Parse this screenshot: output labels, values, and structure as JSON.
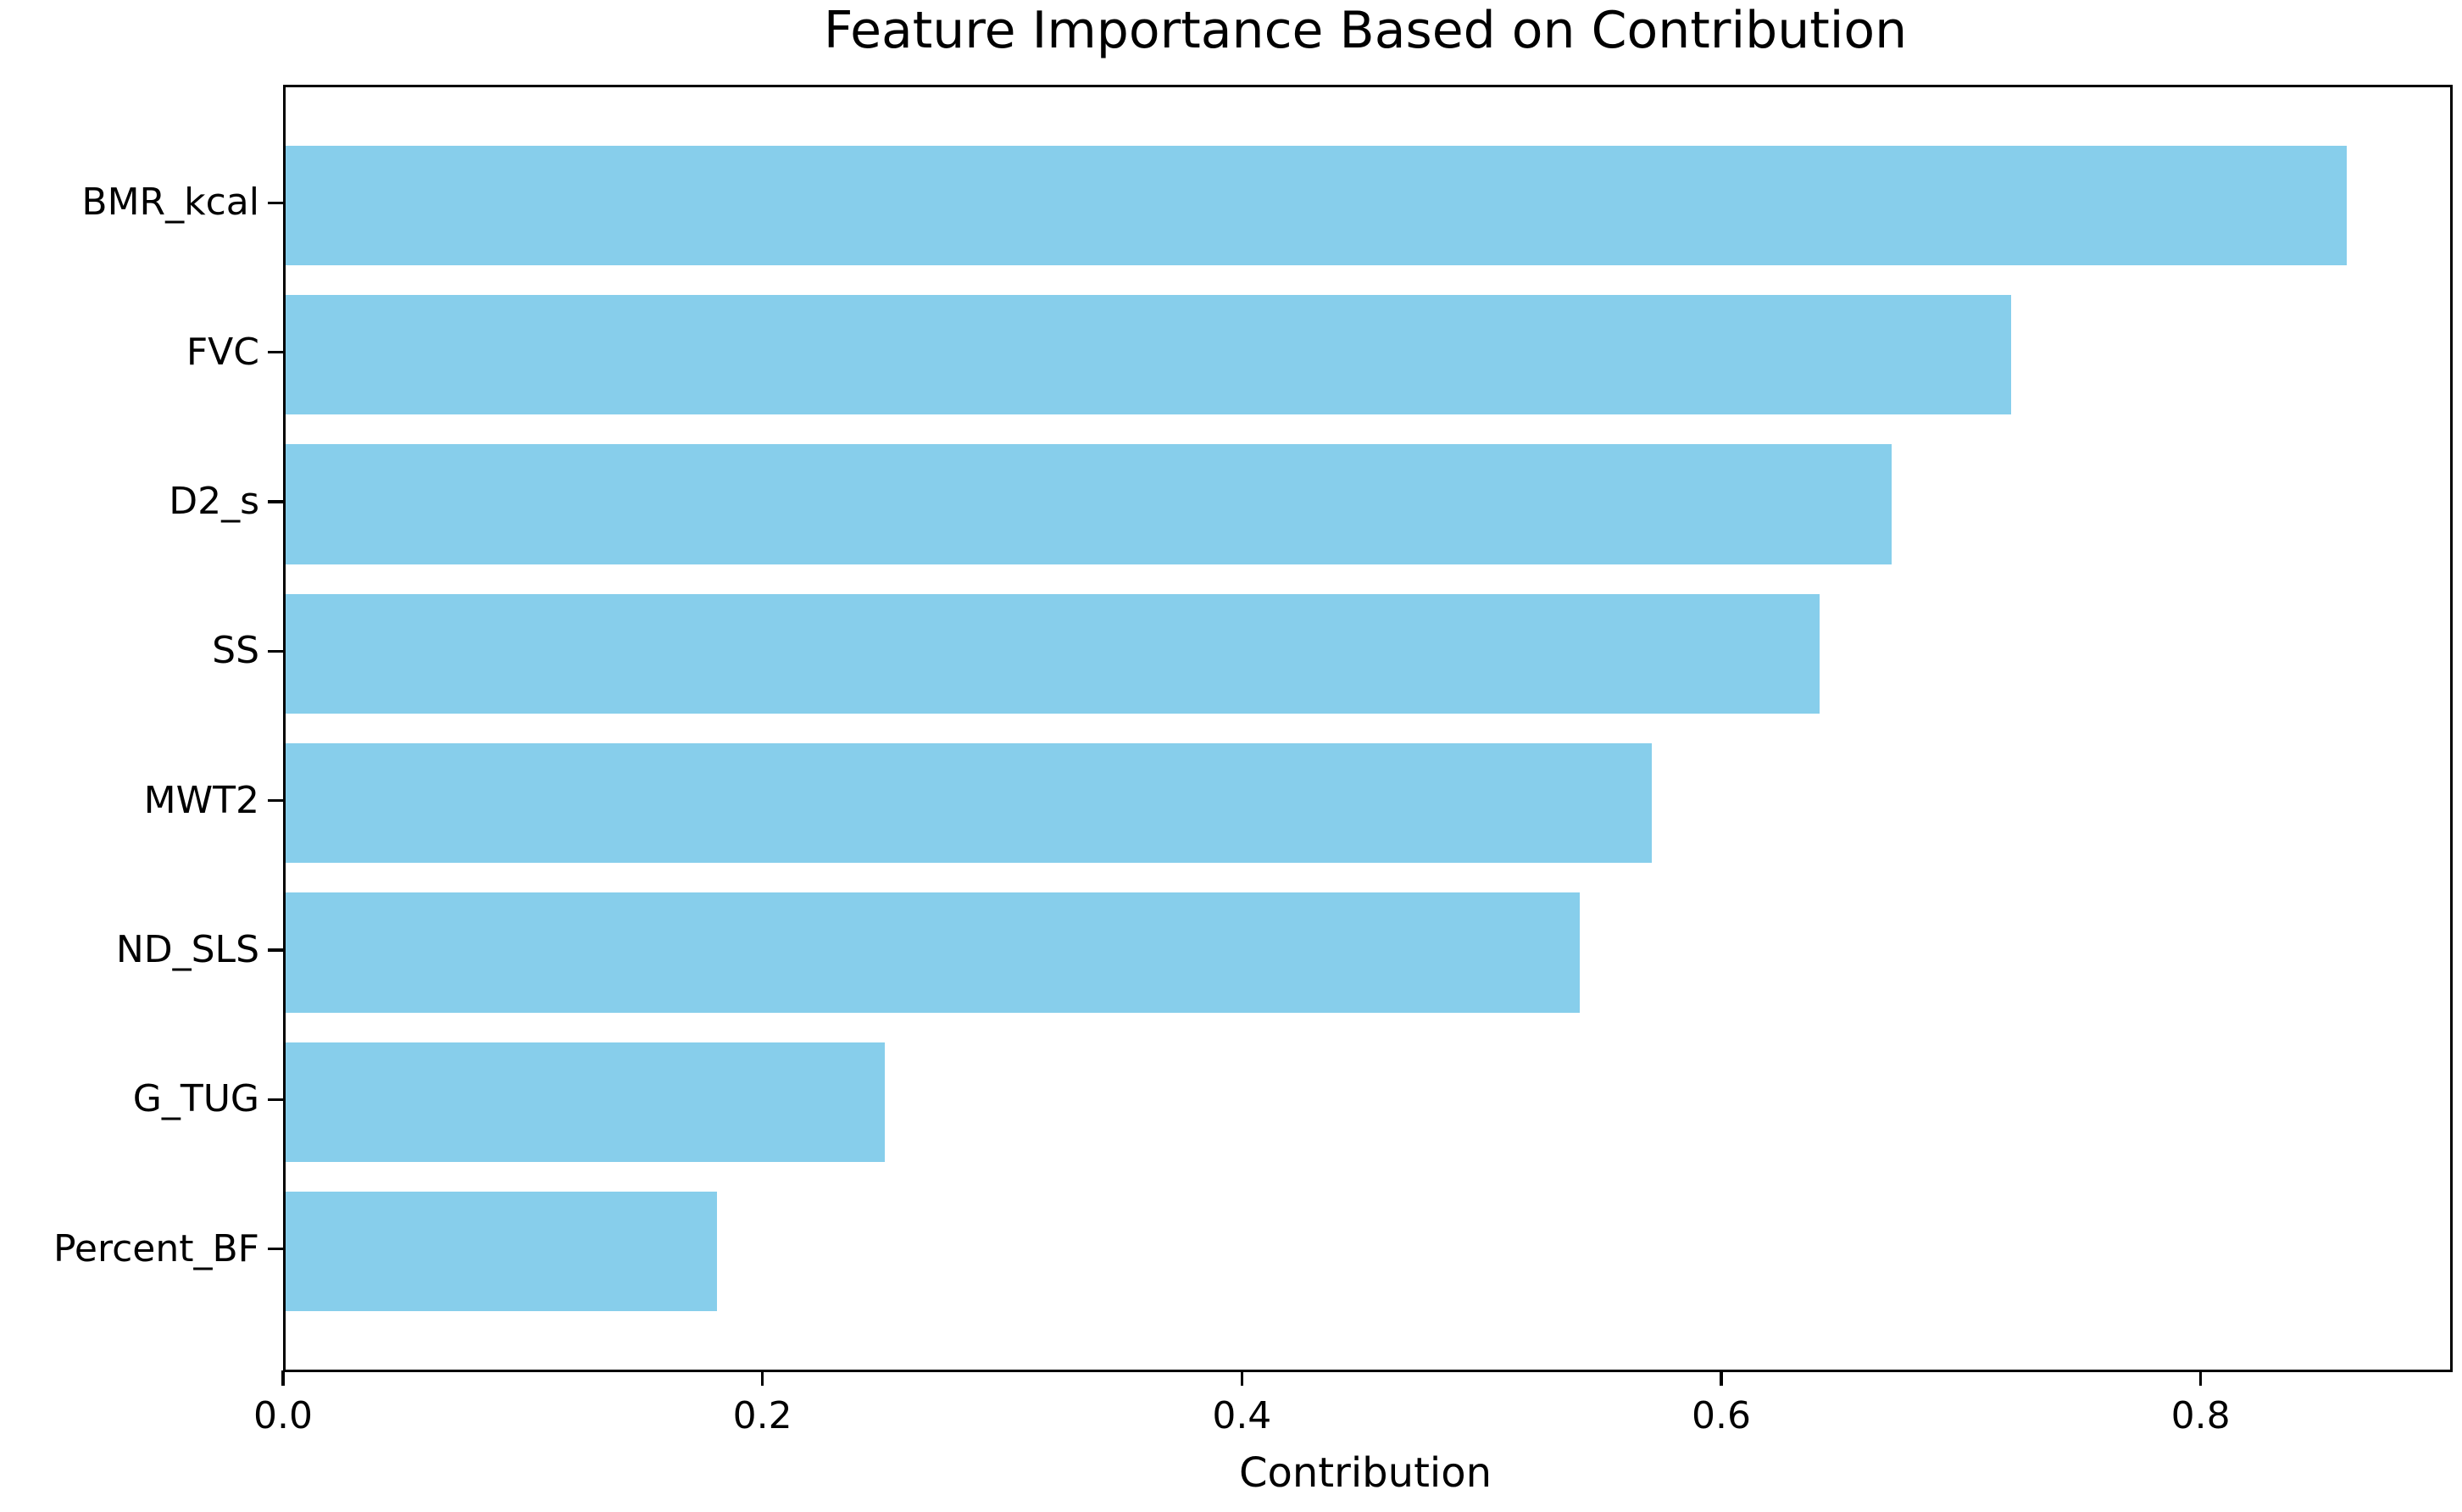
{
  "chart_data": {
    "type": "bar",
    "orientation": "horizontal",
    "title": "Feature Importance Based on Contribution",
    "xlabel": "Contribution",
    "ylabel": "",
    "categories": [
      "BMR_kcal",
      "FVC",
      "D2_s",
      "SS",
      "MWT2",
      "ND_SLS",
      "G_TUG",
      "Percent_BF"
    ],
    "values": [
      0.86,
      0.72,
      0.67,
      0.64,
      0.57,
      0.54,
      0.25,
      0.18
    ],
    "x_ticks": [
      0.0,
      0.2,
      0.4,
      0.6,
      0.8
    ],
    "x_tick_labels": [
      "0.0",
      "0.2",
      "0.4",
      "0.6",
      "0.8"
    ],
    "xlim": [
      0,
      0.903
    ],
    "bar_color": "#87CEEB",
    "spine_color": "#000000",
    "text_color": "#000000",
    "grid": false,
    "legend": null
  }
}
